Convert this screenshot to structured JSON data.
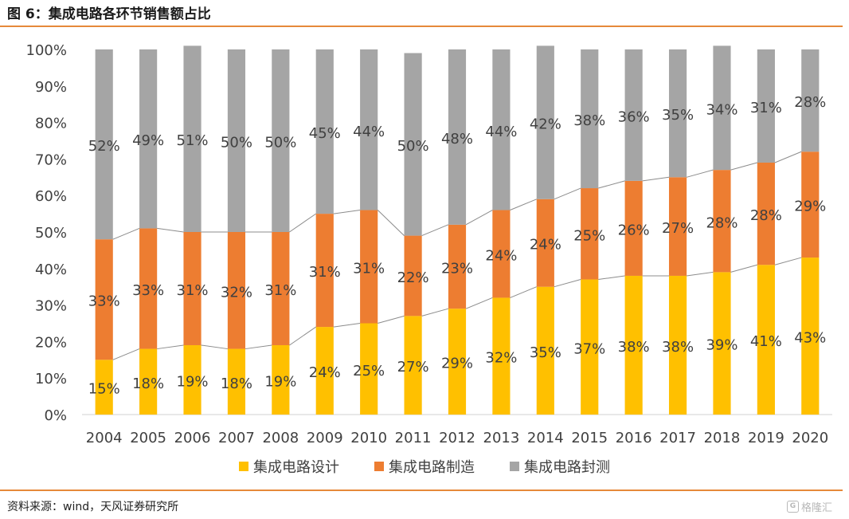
{
  "title": "图 6：集成电路各环节销售额占比",
  "source": "资料来源：wind，天风证券研究所",
  "watermark": {
    "icon": "logo-icon",
    "glyph": "G",
    "text": "格隆汇"
  },
  "colors": {
    "design": "#ffc000",
    "manufacturing": "#ed7d31",
    "packaging": "#a5a5a5",
    "rule": "#e6893a",
    "connector": "#8c8c8c"
  },
  "chart_data": {
    "type": "bar",
    "stacked": true,
    "categories": [
      "2004",
      "2005",
      "2006",
      "2007",
      "2008",
      "2009",
      "2010",
      "2011",
      "2012",
      "2013",
      "2014",
      "2015",
      "2016",
      "2017",
      "2018",
      "2019",
      "2020"
    ],
    "series": [
      {
        "name": "集成电路设计",
        "values": [
          15,
          18,
          19,
          18,
          19,
          24,
          25,
          27,
          29,
          32,
          35,
          37,
          38,
          38,
          39,
          41,
          43
        ]
      },
      {
        "name": "集成电路制造",
        "values": [
          33,
          33,
          31,
          32,
          31,
          31,
          31,
          22,
          23,
          24,
          24,
          25,
          26,
          27,
          28,
          28,
          29
        ]
      },
      {
        "name": "集成电路封测",
        "values": [
          52,
          49,
          51,
          50,
          50,
          45,
          44,
          50,
          48,
          44,
          42,
          38,
          36,
          35,
          34,
          31,
          28
        ]
      }
    ],
    "ylim": [
      0,
      100
    ],
    "yticks": [
      "0%",
      "10%",
      "20%",
      "30%",
      "40%",
      "50%",
      "60%",
      "70%",
      "80%",
      "90%",
      "100%"
    ],
    "value_suffix": "%",
    "grid": false,
    "legend_position": "bottom"
  }
}
